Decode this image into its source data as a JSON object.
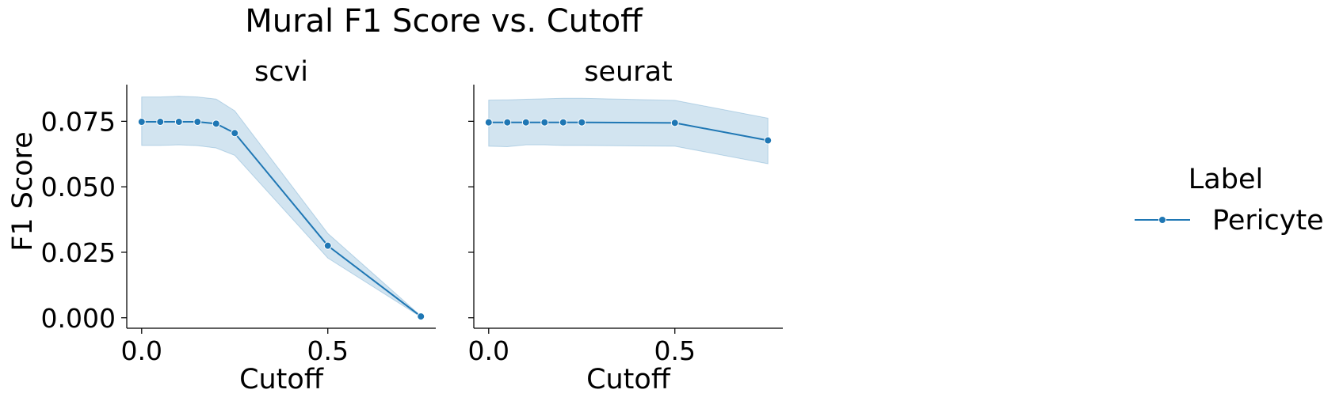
{
  "chart_data": {
    "type": "line",
    "title": "Mural F1 Score vs. Cutoff",
    "ylabel": "F1 Score",
    "xlabel": "Cutoff",
    "xlim": [
      -0.04,
      0.79
    ],
    "ylim": [
      -0.004,
      0.089
    ],
    "x_ticks": [
      0.0,
      0.5
    ],
    "x_tick_labels": [
      "0.0",
      "0.5"
    ],
    "y_ticks": [
      0.0,
      0.025,
      0.05,
      0.075
    ],
    "y_tick_labels": [
      "0.000",
      "0.025",
      "0.050",
      "0.075"
    ],
    "grid": false,
    "colors": {
      "line": "#1f77b4",
      "band": "#1f77b4"
    },
    "legend": {
      "title": "Label",
      "placement": "right",
      "entries": [
        "Pericyte"
      ]
    },
    "panels": [
      {
        "title": "scvi",
        "series": [
          {
            "name": "Pericyte",
            "x": [
              0.0,
              0.05,
              0.1,
              0.15,
              0.2,
              0.25,
              0.5,
              0.75
            ],
            "y": [
              0.0748,
              0.0748,
              0.0748,
              0.0748,
              0.0741,
              0.0705,
              0.0275,
              0.0005
            ],
            "ci_low": [
              0.0658,
              0.0658,
              0.066,
              0.0657,
              0.0648,
              0.062,
              0.0228,
              0.0003
            ],
            "ci_high": [
              0.0843,
              0.0843,
              0.0846,
              0.0843,
              0.0835,
              0.079,
              0.0322,
              0.0007
            ]
          }
        ]
      },
      {
        "title": "seurat",
        "series": [
          {
            "name": "Pericyte",
            "x": [
              0.0,
              0.05,
              0.1,
              0.15,
              0.2,
              0.25,
              0.5,
              0.75
            ],
            "y": [
              0.0746,
              0.0746,
              0.0746,
              0.0746,
              0.0746,
              0.0746,
              0.0744,
              0.0677
            ],
            "ci_low": [
              0.0655,
              0.0653,
              0.066,
              0.066,
              0.0658,
              0.0658,
              0.0655,
              0.0588
            ],
            "ci_high": [
              0.0831,
              0.0832,
              0.0834,
              0.0836,
              0.0838,
              0.0838,
              0.083,
              0.0762
            ]
          }
        ]
      }
    ]
  }
}
